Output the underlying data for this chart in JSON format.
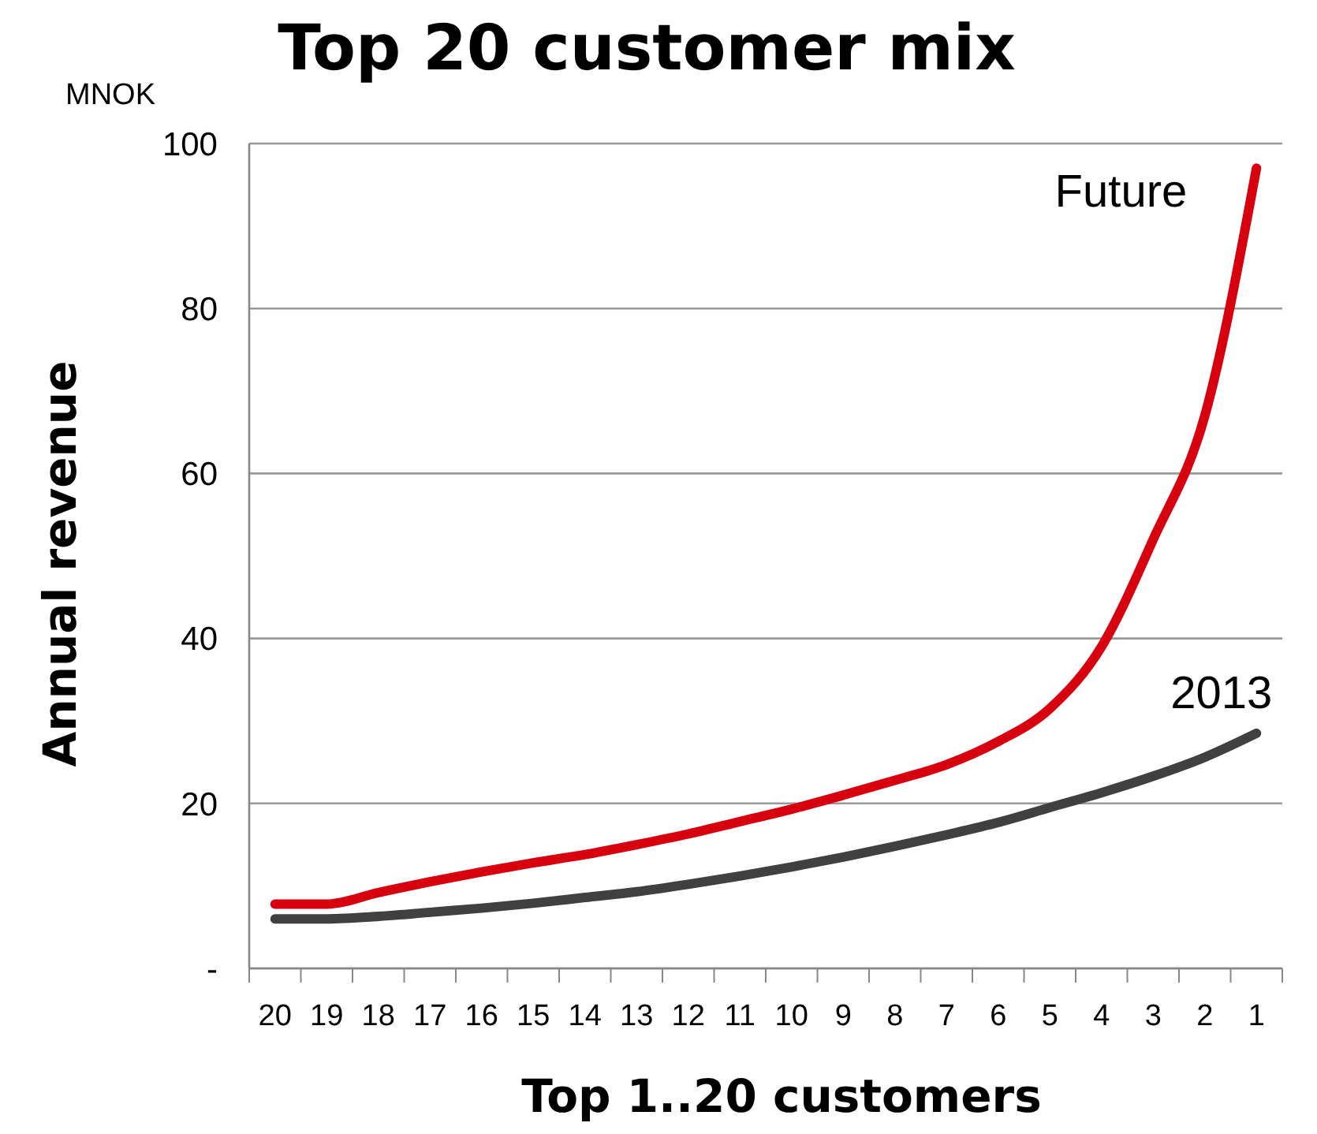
{
  "chart_data": {
    "type": "line",
    "title": "Top 20 customer mix",
    "xlabel": "Top 1..20 customers",
    "ylabel": "Annual revenue",
    "annotations": [
      "MNOK"
    ],
    "categories": [
      "20",
      "19",
      "18",
      "17",
      "16",
      "15",
      "14",
      "13",
      "12",
      "11",
      "10",
      "9",
      "8",
      "7",
      "6",
      "5",
      "4",
      "3",
      "2",
      "1"
    ],
    "series": [
      {
        "name": "Future",
        "color": "#d7000f",
        "values": [
          7.8,
          7.8,
          9.2,
          10.5,
          11.7,
          12.8,
          13.8,
          15.0,
          16.3,
          17.8,
          19.3,
          21,
          22.8,
          24.7,
          27.5,
          31.5,
          39,
          52,
          67,
          97
        ]
      },
      {
        "name": "2013",
        "color": "#404040",
        "values": [
          6,
          6,
          6.3,
          6.8,
          7.3,
          7.9,
          8.6,
          9.3,
          10.2,
          11.2,
          12.3,
          13.5,
          14.8,
          16.2,
          17.7,
          19.5,
          21.3,
          23.3,
          25.6,
          28.5
        ]
      }
    ],
    "ylim": [
      0,
      100
    ],
    "yticks": [
      {
        "value": 0,
        "label": "-"
      },
      20,
      40,
      60,
      80,
      100
    ],
    "grid": "y",
    "marker": "none",
    "line_style": "solid"
  }
}
